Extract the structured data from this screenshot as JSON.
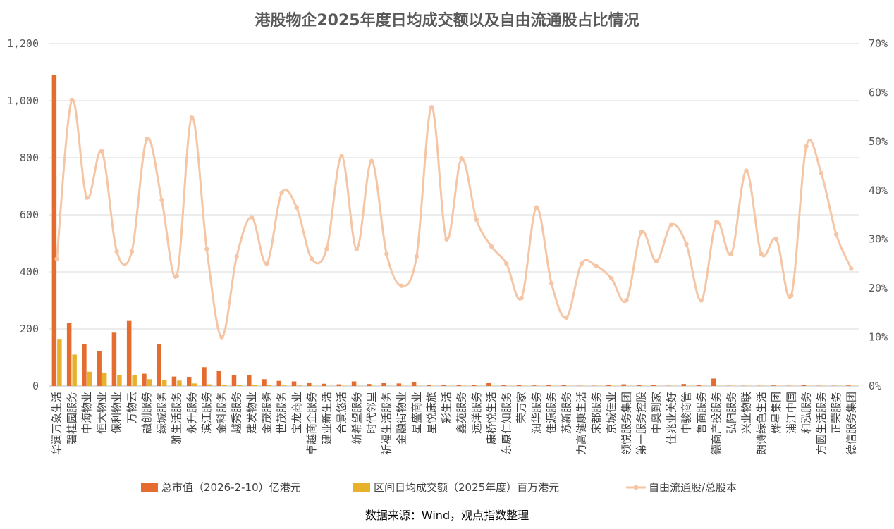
{
  "chart_data": {
    "type": "bar+line",
    "title": "港股物企2025年度日均成交额以及自由流通股占比情况",
    "source": "数据来源：Wind，观点指数整理",
    "y_left": {
      "ticks": [
        "0",
        "200",
        "400",
        "600",
        "800",
        "1,000",
        "1,200"
      ],
      "range": [
        0,
        1200
      ]
    },
    "y_right": {
      "ticks": [
        "0%",
        "10%",
        "20%",
        "30%",
        "40%",
        "50%",
        "60%",
        "70%"
      ],
      "range": [
        0,
        70
      ]
    },
    "grid": true,
    "legend_position": "bottom",
    "categories": [
      "华润万象生活",
      "碧桂园服务",
      "中海物业",
      "恒大物业",
      "保利物业",
      "万物云",
      "融创服务",
      "绿城服务",
      "雅生活服务",
      "永升服务",
      "滨江服务",
      "金科服务",
      "越秀服务",
      "建发物业",
      "金茂服务",
      "世茂服务",
      "宝龙商业",
      "卓越商企服务",
      "建业新生活",
      "合景悠活",
      "新希望服务",
      "时代邻里",
      "祈福生活服务",
      "金融街物业",
      "星盛商业",
      "星悦康旅",
      "彩生活",
      "鑫苑服务",
      "远洋服务",
      "康桥悦生活",
      "东原仁知服务",
      "荣万家",
      "润华服务",
      "佳源服务",
      "苏新服务",
      "力高健康生活",
      "宋都服务",
      "京城佳业",
      "领悦服务集团",
      "第一服务控股",
      "中奥到家",
      "佳兆业美好",
      "中骏商管",
      "鲁商服务",
      "德商产投服务",
      "弘阳服务",
      "兴业物联",
      "朗诗绿色生活",
      "烨星集团",
      "浦江中国",
      "和泓服务",
      "方圆生活服务",
      "正荣服务",
      "德信服务集团"
    ],
    "series": [
      {
        "name": "总市值（2026-2-10）亿港元",
        "color": "#E46C2E",
        "values": [
          1090,
          220,
          148,
          123,
          187,
          228,
          43,
          148,
          33,
          32,
          66,
          52,
          37,
          38,
          24,
          18,
          16,
          10,
          8,
          6,
          16,
          7,
          10,
          9,
          14,
          3,
          5,
          3,
          4,
          10,
          3,
          4,
          2,
          3,
          4,
          1,
          1,
          5,
          6,
          3,
          5,
          1,
          7,
          5,
          26,
          1,
          1,
          1,
          2,
          1,
          5,
          1,
          1,
          2
        ]
      },
      {
        "name": "区间日均成交额（2025年度）百万港元",
        "color": "#E8B12B",
        "values": [
          165,
          110,
          50,
          47,
          38,
          37,
          24,
          20,
          19,
          9,
          6,
          5,
          4,
          4,
          3,
          2,
          2,
          1,
          1,
          1,
          1,
          1,
          1,
          1,
          1,
          1,
          1,
          1,
          1,
          1,
          1,
          1,
          1,
          1,
          1,
          1,
          1,
          1,
          1,
          1,
          1,
          1,
          1,
          1,
          1,
          1,
          1,
          1,
          1,
          1,
          1,
          1,
          1,
          1
        ]
      },
      {
        "name": "自由流通股/总股本",
        "color": "#F5C6A6",
        "values": [
          26,
          58.5,
          38.5,
          48,
          27.5,
          27.5,
          50.5,
          38,
          22.5,
          55,
          28,
          10,
          26.5,
          34.5,
          25,
          39.5,
          36.5,
          26,
          28,
          47,
          28,
          46,
          27,
          20.5,
          26.5,
          57,
          30,
          46.5,
          34,
          28.5,
          25,
          18,
          36.5,
          21,
          14,
          25,
          24.5,
          22,
          17.5,
          31.5,
          25.5,
          33,
          29,
          17.5,
          33.5,
          27,
          44,
          27,
          30,
          18.5,
          49,
          43.5,
          31,
          24
        ]
      }
    ]
  }
}
